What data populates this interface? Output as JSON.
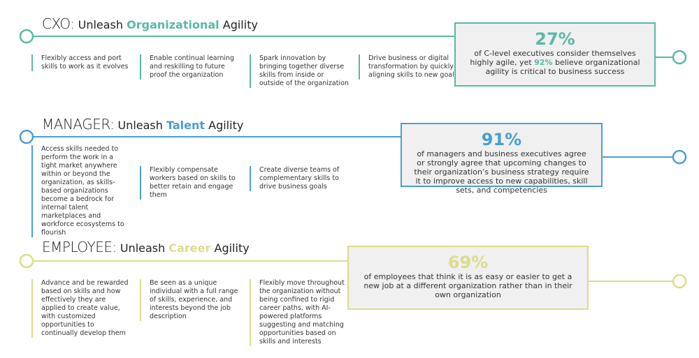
{
  "sections": [
    {
      "role": "CXO:",
      "lead": "Unleash",
      "keyword": "Organizational",
      "tail": "Agility",
      "color": "#5bb8a6",
      "items": [
        "Flexibly access and port skills to work as it evolves",
        "Enable continual learning and reskilling to future proof the organization",
        "Spark innovation by bringing together diverse skills from inside or outside of the organization",
        "Drive business or digital transformation by quickly aligning skills to new goals"
      ],
      "stat": {
        "value": "27%",
        "text": "of C-level executives consider themselves highly agile, yet",
        "highlight": "92%",
        "text_after": "believe organizational agility is critical to business success"
      }
    },
    {
      "role": "MANAGER:",
      "lead": "Unleash",
      "keyword": "Talent",
      "tail": "Agility",
      "color": "#4a9fd4",
      "items": [
        "Access skills needed to perform the work in a tight market anywhere within or beyond the organization, as skills-based organizations become a bedrock for internal talent marketplaces and workforce ecosystems to flourish",
        "Flexibly compensate workers based on skills to better retain and engage them",
        "Create diverse teams of complementary skills to drive business goals"
      ],
      "stat": {
        "value": "91%",
        "text": "of managers and business executives agree or strongly agree that upcoming changes to their organization’s business strategy require it to improve access to new capabilities, skill sets, and competencies"
      }
    },
    {
      "role": "EMPLOYEE:",
      "lead": "Unleash",
      "keyword": "Career",
      "tail": "Agility",
      "color": "#dcdc8c",
      "items": [
        "Advance and be rewarded based on skills and how effectively they are applied to create value, with customized opportunities to continually develop them",
        "Be seen as a unique individual with a full range of skills, experience, and interests beyond the job description",
        "Flexibly move throughout the organization without being confined to rigid career paths, with AI-powered platforms suggesting and matching opportunities based on skills and interests"
      ],
      "stat": {
        "value": "69%",
        "text": "of employees that think it is as easy or easier to get a new job at a different organization rather than in their own organization"
      }
    }
  ]
}
